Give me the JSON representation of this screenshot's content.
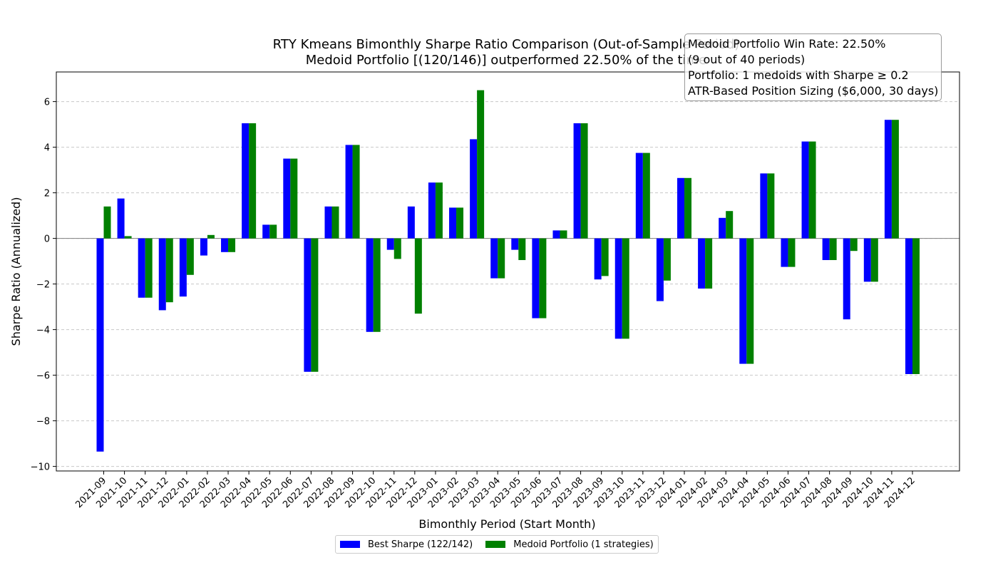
{
  "chart_data": {
    "type": "bar",
    "title": "RTY Kmeans Bimonthly Sharpe Ratio Comparison (Out-of-Sample Period)",
    "subtitle": "Medoid Portfolio [(120/146)] outperformed 22.50% of the time",
    "xlabel": "Bimonthly Period (Start Month)",
    "ylabel": "Sharpe Ratio (Annualized)",
    "ylim": [
      -10.2,
      7.3
    ],
    "yticks": [
      -10,
      -8,
      -6,
      -4,
      -2,
      0,
      2,
      4,
      6
    ],
    "grid": true,
    "legend_position": "bottom-center",
    "categories": [
      "2021-09",
      "2021-10",
      "2021-11",
      "2021-12",
      "2022-01",
      "2022-02",
      "2022-03",
      "2022-04",
      "2022-05",
      "2022-06",
      "2022-07",
      "2022-08",
      "2022-09",
      "2022-10",
      "2022-11",
      "2022-12",
      "2023-01",
      "2023-02",
      "2023-03",
      "2023-04",
      "2023-05",
      "2023-06",
      "2023-07",
      "2023-08",
      "2023-09",
      "2023-10",
      "2023-11",
      "2023-12",
      "2024-01",
      "2024-02",
      "2024-03",
      "2024-04",
      "2024-05",
      "2024-06",
      "2024-07",
      "2024-08",
      "2024-09",
      "2024-10",
      "2024-11",
      "2024-12"
    ],
    "series": [
      {
        "name": "Best Sharpe (122/142)",
        "color": "#0000ff",
        "values": [
          -9.35,
          1.75,
          -2.6,
          -3.15,
          -2.55,
          -0.75,
          -0.6,
          5.05,
          0.6,
          3.5,
          -5.85,
          1.4,
          4.1,
          -4.1,
          -0.5,
          1.4,
          2.45,
          1.35,
          4.35,
          -1.75,
          -0.5,
          -3.5,
          0.35,
          5.05,
          -1.8,
          -4.4,
          3.75,
          -2.75,
          2.65,
          -2.2,
          0.9,
          -5.5,
          2.85,
          -1.25,
          4.25,
          -0.95,
          -3.55,
          -1.9,
          5.2,
          -5.95
        ]
      },
      {
        "name": "Medoid Portfolio (1 strategies)",
        "color": "#008000",
        "values": [
          1.4,
          0.1,
          -2.6,
          -2.8,
          -1.6,
          0.15,
          -0.6,
          5.05,
          0.6,
          3.5,
          -5.85,
          1.4,
          4.1,
          -4.1,
          -0.9,
          -3.3,
          2.45,
          1.35,
          6.5,
          -1.75,
          -0.95,
          -3.5,
          0.35,
          5.05,
          -1.65,
          -4.4,
          3.75,
          -1.85,
          2.65,
          -2.2,
          1.2,
          -5.5,
          2.85,
          -1.25,
          4.25,
          -0.95,
          -0.55,
          -1.9,
          5.2,
          -5.95
        ]
      }
    ]
  },
  "info_box": {
    "line1": "Medoid Portfolio Win Rate: 22.50%",
    "line2": "(9 out of 40 periods)",
    "line3": "Portfolio: 1 medoids with Sharpe ≥ 0.2",
    "line4": "ATR-Based Position Sizing ($6,000, 30 days)"
  },
  "legend": {
    "best_label": "Best Sharpe (122/142)",
    "medoid_label": "Medoid Portfolio (1 strategies)"
  }
}
